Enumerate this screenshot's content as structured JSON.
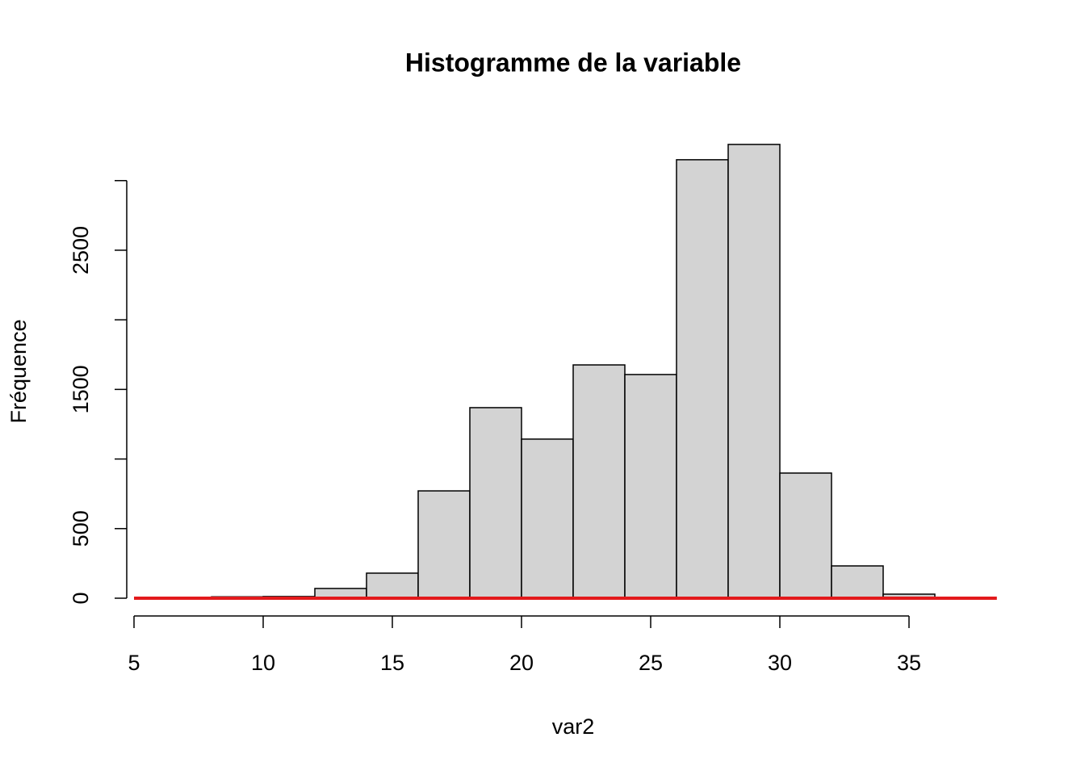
{
  "chart_data": {
    "type": "histogram",
    "title": "Histogramme de la variable",
    "x_label": "var2",
    "y_label": "Fréquence",
    "bins": [
      8,
      10,
      12,
      14,
      16,
      18,
      20,
      22,
      24,
      26,
      28,
      30,
      32,
      34,
      36
    ],
    "values": [
      10,
      12,
      70,
      180,
      771,
      1369,
      1143,
      1676,
      1607,
      3150,
      3260,
      899,
      232,
      29
    ],
    "color": "#d3d3d3",
    "edge_color": "#000000",
    "xlim": [
      4.7,
      38.7
    ],
    "ylim": [
      0,
      3300
    ],
    "xticks": [
      5,
      10,
      15,
      20,
      25,
      30,
      35
    ],
    "yticks": [
      0,
      500,
      {
        "value": 1000,
        "label": null
      },
      1500,
      {
        "value": 2000,
        "label": null
      },
      2500,
      {
        "value": 3000,
        "label": null
      }
    ],
    "density_line": {
      "x": [
        5,
        38.4
      ],
      "values": [
        0,
        0
      ],
      "color": "#e31a1c"
    }
  }
}
